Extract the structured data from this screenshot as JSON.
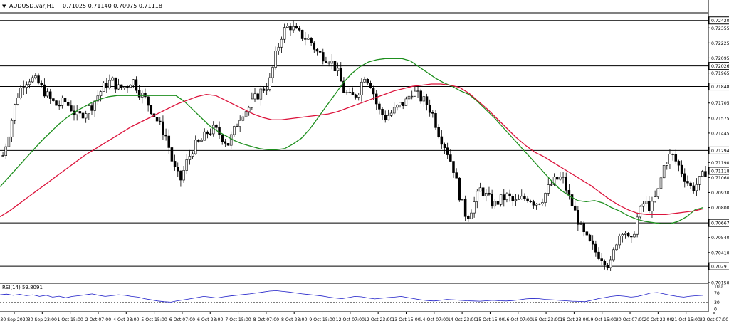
{
  "header": {
    "collapse_glyph": "▼",
    "symbol": "AUDUSD.var,H1",
    "ohlc": "0.71025 0.71140 0.70975 0.71118"
  },
  "rsi_panel": {
    "label": "RSI(14) 59.8091",
    "scale_labels": [
      "100",
      "70",
      "30",
      "0"
    ]
  },
  "chart_data": [
    {
      "type": "candlestick",
      "title": "AUDUSD.var,H1",
      "xlabel": "",
      "ylabel": "",
      "ylim": [
        0.7015,
        0.7248
      ],
      "y_tick_labels": [
        "0.72420",
        "0.72355",
        "0.72225",
        "0.72095",
        "0.72026",
        "0.71965",
        "0.71848",
        "0.71705",
        "0.71575",
        "0.71445",
        "0.71294",
        "0.71190",
        "0.71118",
        "0.71060",
        "0.70930",
        "0.70800",
        "0.70667",
        "0.70540",
        "0.70410",
        "0.70291",
        "0.70150"
      ],
      "x_tick_labels": [
        "30 Sep 2020",
        "30 Sep 23:00",
        "1 Oct 15:00",
        "2 Oct 07:00",
        "4 Oct 23:00",
        "5 Oct 15:00",
        "6 Oct 07:00",
        "6 Oct 23:00",
        "7 Oct 15:00",
        "8 Oct 07:00",
        "8 Oct 23:00",
        "9 Oct 15:00",
        "12 Oct 07:00",
        "12 Oct 23:00",
        "13 Oct 15:00",
        "14 Oct 07:00",
        "14 Oct 23:00",
        "15 Oct 15:00",
        "16 Oct 07:00",
        "16 Oct 23:00",
        "18 Oct 23:00",
        "19 Oct 15:00",
        "20 Oct 07:00",
        "20 Oct 23:00",
        "21 Oct 15:00",
        "22 Oct 07:00"
      ],
      "horizontal_levels": [
        0.7242,
        0.72026,
        0.71848,
        0.71294,
        0.70667,
        0.70291
      ],
      "current_price": 0.71118,
      "close_path": [
        0.7125,
        0.7148,
        0.7175,
        0.7188,
        0.7192,
        0.7189,
        0.7181,
        0.7173,
        0.7168,
        0.7172,
        0.7166,
        0.7158,
        0.7163,
        0.7168,
        0.7178,
        0.7186,
        0.719,
        0.7183,
        0.7185,
        0.7191,
        0.718,
        0.7173,
        0.7162,
        0.7151,
        0.7141,
        0.7115,
        0.7103,
        0.712,
        0.7133,
        0.7137,
        0.7145,
        0.7148,
        0.7142,
        0.7135,
        0.7148,
        0.7162,
        0.7166,
        0.7175,
        0.7182,
        0.7187,
        0.7212,
        0.7232,
        0.7238,
        0.7232,
        0.7228,
        0.7225,
        0.7215,
        0.7211,
        0.7208,
        0.7198,
        0.7181,
        0.7175,
        0.7179,
        0.7195,
        0.7186,
        0.7165,
        0.7158,
        0.7162,
        0.7168,
        0.7171,
        0.7181,
        0.7176,
        0.7171,
        0.7161,
        0.7143,
        0.7131,
        0.7115,
        0.7089,
        0.7071,
        0.7083,
        0.7096,
        0.7089,
        0.7082,
        0.7087,
        0.709,
        0.7084,
        0.7087,
        0.7089,
        0.7084,
        0.7087,
        0.7097,
        0.7104,
        0.7106,
        0.7089,
        0.7074,
        0.7058,
        0.7049,
        0.7041,
        0.7036,
        0.7029,
        0.7052,
        0.7063,
        0.7047,
        0.7071,
        0.7085,
        0.7079,
        0.7093,
        0.7118,
        0.7126,
        0.7117,
        0.7106,
        0.7096,
        0.7102,
        0.7111
      ],
      "series": [
        {
          "name": "",
          "color": "#1e8f1e",
          "values": [
            0.7098,
            0.7106,
            0.7114,
            0.7122,
            0.713,
            0.7138,
            0.7145,
            0.7152,
            0.7158,
            0.7163,
            0.7167,
            0.7171,
            0.7174,
            0.7176,
            0.7177,
            0.7177,
            0.7177,
            0.7177,
            0.7177,
            0.7177,
            0.7177,
            0.7177,
            0.7172,
            0.7165,
            0.7158,
            0.7151,
            0.7146,
            0.7142,
            0.7138,
            0.7135,
            0.7133,
            0.7131,
            0.713,
            0.713,
            0.7131,
            0.7135,
            0.714,
            0.7148,
            0.7158,
            0.7168,
            0.7178,
            0.7188,
            0.7196,
            0.7202,
            0.7206,
            0.7208,
            0.7209,
            0.7209,
            0.7209,
            0.7207,
            0.7202,
            0.7197,
            0.7192,
            0.7188,
            0.7185,
            0.7181,
            0.7178,
            0.7172,
            0.7165,
            0.7158,
            0.715,
            0.7142,
            0.7134,
            0.7126,
            0.7118,
            0.711,
            0.7102,
            0.7095,
            0.709,
            0.7086,
            0.7085,
            0.7086,
            0.7084,
            0.708,
            0.7077,
            0.7073,
            0.707,
            0.7068,
            0.7067,
            0.7066,
            0.7066,
            0.7068,
            0.7072,
            0.7078,
            0.708
          ]
        },
        {
          "name": "",
          "color": "#dc143c",
          "values": [
            0.7072,
            0.7077,
            0.7083,
            0.7089,
            0.7095,
            0.7101,
            0.7107,
            0.7113,
            0.7119,
            0.7125,
            0.713,
            0.7135,
            0.714,
            0.7145,
            0.715,
            0.7154,
            0.7158,
            0.7162,
            0.7166,
            0.717,
            0.7173,
            0.7176,
            0.7178,
            0.7177,
            0.7173,
            0.7169,
            0.7165,
            0.7161,
            0.7158,
            0.7156,
            0.7156,
            0.7157,
            0.7158,
            0.7159,
            0.716,
            0.7161,
            0.7163,
            0.7166,
            0.7169,
            0.7172,
            0.7175,
            0.7178,
            0.7181,
            0.7183,
            0.7185,
            0.7186,
            0.7187,
            0.7187,
            0.7186,
            0.7184,
            0.7179,
            0.7172,
            0.7165,
            0.7157,
            0.7149,
            0.7141,
            0.7134,
            0.7128,
            0.7124,
            0.7119,
            0.7114,
            0.7109,
            0.7104,
            0.7099,
            0.7093,
            0.7087,
            0.7082,
            0.7078,
            0.7075,
            0.7074,
            0.7074,
            0.7074,
            0.7075,
            0.7076,
            0.7077,
            0.7079
          ]
        }
      ]
    },
    {
      "type": "line",
      "title": "RSI(14) 59.8091",
      "xlabel": "",
      "ylabel": "",
      "ylim": [
        0,
        100
      ],
      "levels": [
        70,
        30
      ],
      "series": [
        {
          "name": "",
          "color": "#1e1ec8",
          "values": [
            62,
            65,
            60,
            64,
            58,
            62,
            55,
            60,
            52,
            56,
            49,
            55,
            58,
            62,
            66,
            60,
            55,
            58,
            62,
            60,
            55,
            52,
            45,
            40,
            35,
            32,
            30,
            36,
            40,
            45,
            50,
            55,
            52,
            48,
            53,
            57,
            60,
            63,
            66,
            70,
            74,
            78,
            80,
            77,
            74,
            70,
            66,
            63,
            60,
            57,
            52,
            48,
            45,
            50,
            55,
            53,
            48,
            44,
            47,
            50,
            52,
            55,
            50,
            45,
            40,
            37,
            35,
            38,
            42,
            40,
            38,
            36,
            35,
            34,
            36,
            38,
            36,
            35,
            37,
            40,
            44,
            46,
            45,
            42,
            40,
            38,
            36,
            34,
            33,
            32,
            38,
            45,
            50,
            55,
            58,
            56,
            52,
            55,
            62,
            70,
            72,
            66,
            60,
            55,
            52,
            56,
            58,
            60
          ]
        }
      ]
    }
  ]
}
